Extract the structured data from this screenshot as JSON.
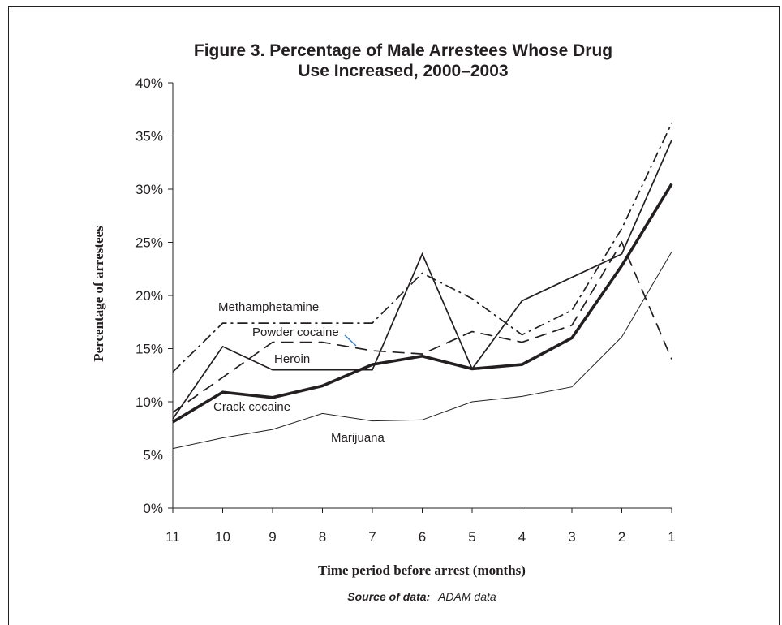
{
  "chart_data": {
    "type": "line",
    "title_lines": [
      "Figure 3. Percentage of Male Arrestees Whose Drug",
      "Use Increased, 2000–2003"
    ],
    "xlabel": "Time period before arrest (months)",
    "ylabel": "Percentage of arrestees",
    "x": [
      "11",
      "10",
      "9",
      "8",
      "7",
      "6",
      "5",
      "4",
      "3",
      "2",
      "1"
    ],
    "ylim": [
      0,
      40
    ],
    "yticks": [
      0,
      5,
      10,
      15,
      20,
      25,
      30,
      35,
      40
    ],
    "ytick_labels": [
      "0%",
      "5%",
      "10%",
      "15%",
      "20%",
      "25%",
      "30%",
      "35%",
      "40%"
    ],
    "grid": false,
    "series": [
      {
        "name": "Methamphetamine",
        "style": "dashdot",
        "color": "#231f20",
        "values": [
          12.8,
          17.4,
          17.4,
          17.4,
          17.4,
          22.1,
          19.7,
          16.3,
          18.6,
          26.3,
          36.2
        ]
      },
      {
        "name": "Powder cocaine",
        "style": "dashed",
        "color": "#231f20",
        "values": [
          9.0,
          12.3,
          15.6,
          15.6,
          14.8,
          14.5,
          16.6,
          15.6,
          17.2,
          25.0,
          14.0
        ]
      },
      {
        "name": "Heroin",
        "style": "solid",
        "color": "#231f20",
        "values": [
          8.4,
          15.2,
          13.0,
          13.0,
          13.0,
          23.9,
          13.1,
          19.5,
          21.7,
          23.9,
          34.6
        ]
      },
      {
        "name": "Crack cocaine",
        "style": "thick",
        "color": "#231f20",
        "values": [
          8.1,
          10.9,
          10.4,
          11.5,
          13.5,
          14.3,
          13.1,
          13.5,
          16.0,
          22.8,
          30.5
        ]
      },
      {
        "name": "Marijuana",
        "style": "thin",
        "color": "#231f20",
        "values": [
          5.6,
          6.6,
          7.4,
          8.9,
          8.2,
          8.3,
          10.0,
          10.5,
          11.4,
          16.1,
          24.1
        ]
      }
    ]
  },
  "source_label": "Source of data:",
  "source_text": "ADAM data"
}
